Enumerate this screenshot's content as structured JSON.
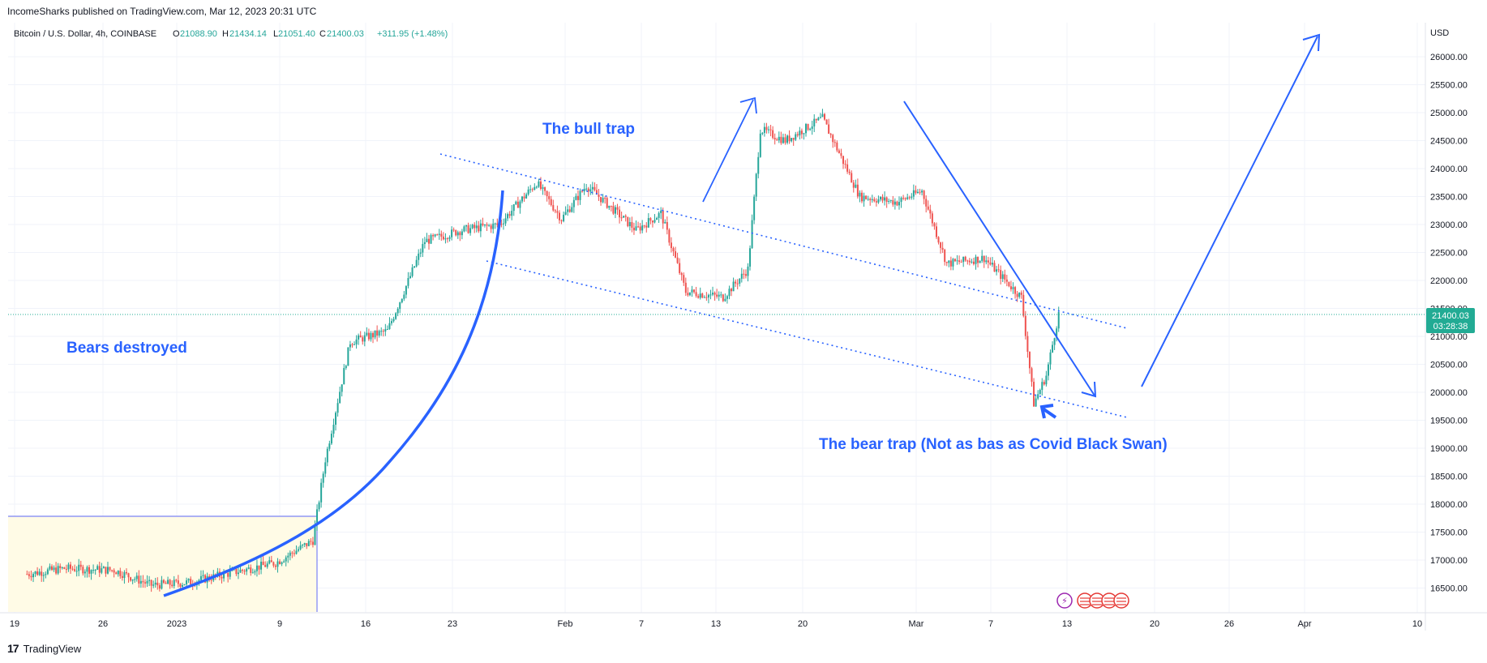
{
  "header": {
    "published": "IncomeSharks published on TradingView.com, Mar 12, 2023 20:31 UTC"
  },
  "footer": {
    "brand": "TradingView"
  },
  "chart_data": {
    "type": "candlestick",
    "symbol": "Bitcoin / U.S. Dollar, 4h, COINBASE",
    "ohlc": {
      "o": "21088.90",
      "h": "21434.14",
      "l": "21051.40",
      "c": "21400.03",
      "chg": "+311.95 (+1.48%)"
    },
    "currency": "USD",
    "last_price": "21400.03",
    "countdown": "03:28:38",
    "ylim": [
      16200,
      26400
    ],
    "y_ticks": [
      16500,
      17000,
      17500,
      18000,
      18500,
      19000,
      19500,
      20000,
      20500,
      21000,
      21500,
      22000,
      22500,
      23000,
      23500,
      24000,
      24500,
      25000,
      25500,
      26000
    ],
    "x_ticks": [
      "19",
      "26",
      "2023",
      "9",
      "16",
      "23",
      "Feb",
      "7",
      "13",
      "20",
      "Mar",
      "7",
      "13",
      "20",
      "26",
      "Apr",
      "10"
    ],
    "price_path": [
      [
        "Dec 19",
        16750
      ],
      [
        "Dec 22",
        16850
      ],
      [
        "Dec 26",
        16820
      ],
      [
        "Dec 29",
        16550
      ],
      [
        "Jan 1",
        16600
      ],
      [
        "Jan 5",
        16800
      ],
      [
        "Jan 8",
        16950
      ],
      [
        "Jan 11",
        17350
      ],
      [
        "Jan 12",
        18800
      ],
      [
        "Jan 14",
        20900
      ],
      [
        "Jan 17",
        21100
      ],
      [
        "Jan 20",
        22700
      ],
      [
        "Jan 23",
        22900
      ],
      [
        "Jan 26",
        23000
      ],
      [
        "Jan 29",
        23750
      ],
      [
        "Jan 31",
        23100
      ],
      [
        "Feb 2",
        23700
      ],
      [
        "Feb 6",
        22900
      ],
      [
        "Feb 8",
        23200
      ],
      [
        "Feb 10",
        21800
      ],
      [
        "Feb 13",
        21700
      ],
      [
        "Feb 15",
        22200
      ],
      [
        "Feb 16",
        24700
      ],
      [
        "Feb 18",
        24500
      ],
      [
        "Feb 21",
        24900
      ],
      [
        "Feb 24",
        23500
      ],
      [
        "Feb 27",
        23400
      ],
      [
        "Mar 1",
        23600
      ],
      [
        "Mar 3",
        22300
      ],
      [
        "Mar 6",
        22400
      ],
      [
        "Mar 9",
        21700
      ],
      [
        "Mar 10",
        19800
      ],
      [
        "Mar 11",
        20300
      ],
      [
        "Mar 12",
        21400
      ]
    ],
    "annotations": [
      {
        "text": "Bears destroyed"
      },
      {
        "text": "The bull trap"
      },
      {
        "text": "The bear trap (Not as bas as Covid Black Swan)"
      }
    ],
    "colors": {
      "up": "#26a69a",
      "down": "#ef5350",
      "drawing": "#2962ff",
      "last_price": "#22ab94"
    }
  }
}
